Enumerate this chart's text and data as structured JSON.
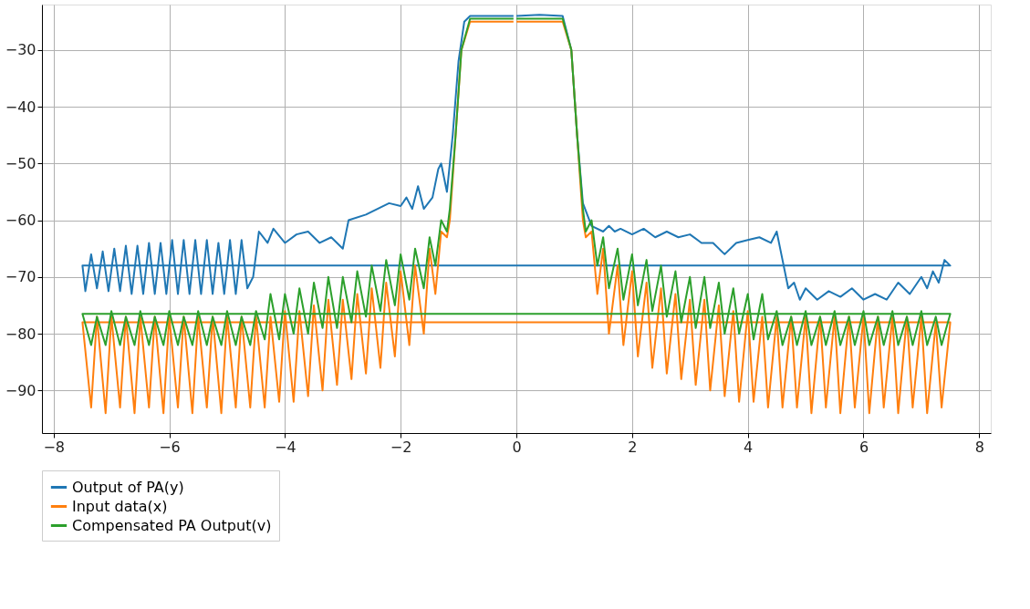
{
  "chart_data": {
    "type": "line",
    "xlim": [
      -8.2,
      8.2
    ],
    "ylim": [
      -97.5,
      -22
    ],
    "xticks": [
      {
        "value": -8,
        "label": "−8"
      },
      {
        "value": -6,
        "label": "−6"
      },
      {
        "value": -4,
        "label": "−4"
      },
      {
        "value": -2,
        "label": "−2"
      },
      0,
      2,
      4,
      6,
      8
    ],
    "yticks": [
      {
        "value": -90,
        "label": "−90"
      },
      {
        "value": -80,
        "label": "−80"
      },
      {
        "value": -70,
        "label": "−70"
      },
      {
        "value": -60,
        "label": "−60"
      },
      {
        "value": -50,
        "label": "−50"
      },
      {
        "value": -40,
        "label": "−40"
      },
      {
        "value": -30,
        "label": "−30"
      }
    ],
    "grid": true,
    "legend": "bottom",
    "line_style": "solid",
    "series": [
      {
        "name": "Output of PA(y)",
        "color": "#1f77b4",
        "x": [
          0,
          0.4,
          0.8,
          0.95,
          1.05,
          1.15,
          1.3,
          1.5,
          1.6,
          1.7,
          1.8,
          2.0,
          2.2,
          2.4,
          2.6,
          2.8,
          3.0,
          3.2,
          3.4,
          3.6,
          3.8,
          4.0,
          4.2,
          4.4,
          4.5,
          4.6,
          4.7,
          4.8,
          4.9,
          5.0,
          5.2,
          5.4,
          5.6,
          5.8,
          6.0,
          6.2,
          6.4,
          6.6,
          6.8,
          7.0,
          7.1,
          7.2,
          7.3,
          7.4,
          7.5,
          -7.5,
          -7.45,
          -7.35,
          -7.25,
          -7.15,
          -7.05,
          -6.95,
          -6.85,
          -6.75,
          -6.65,
          -6.55,
          -6.45,
          -6.35,
          -6.25,
          -6.15,
          -6.05,
          -5.95,
          -5.85,
          -5.75,
          -5.65,
          -5.55,
          -5.45,
          -5.35,
          -5.25,
          -5.15,
          -5.05,
          -4.95,
          -4.85,
          -4.75,
          -4.65,
          -4.55,
          -4.45,
          -4.3,
          -4.2,
          -4.0,
          -3.8,
          -3.6,
          -3.4,
          -3.2,
          -3.0,
          -2.9,
          -2.6,
          -2.4,
          -2.2,
          -2.0,
          -1.9,
          -1.8,
          -1.7,
          -1.6,
          -1.45,
          -1.35,
          -1.3,
          -1.2,
          -1.1,
          -1.0,
          -0.9,
          -0.8,
          -0.4,
          -0.05
        ],
        "values": [
          -24,
          -23.8,
          -24,
          -30,
          -45,
          -57,
          -61,
          -62,
          -61,
          -62,
          -61.5,
          -62.5,
          -61.5,
          -63,
          -62,
          -63,
          -62.5,
          -64,
          -64,
          -66,
          -64,
          -63.5,
          -63,
          -64,
          -62,
          -67,
          -72,
          -71,
          -74,
          -72,
          -74,
          -72.5,
          -73.5,
          -72,
          -74,
          -73,
          -74,
          -71,
          -73,
          -70,
          -72,
          -69,
          -71,
          -67,
          -68,
          -68,
          -72.5,
          -66,
          -72,
          -65.5,
          -72.5,
          -65,
          -72.5,
          -64.5,
          -73,
          -64.5,
          -73,
          -64,
          -73,
          -64,
          -73,
          -63.5,
          -73,
          -63.5,
          -73,
          -63.5,
          -73,
          -63.5,
          -73,
          -64,
          -73,
          -63.5,
          -73,
          -63.5,
          -72,
          -70,
          -62,
          -64,
          -61.5,
          -64,
          -62.5,
          -62,
          -64,
          -63,
          -65,
          -60,
          -59,
          -58,
          -57,
          -57.5,
          -56,
          -58,
          -54,
          -58,
          -56,
          -51,
          -50,
          -55,
          -45,
          -32,
          -25,
          -24,
          -24,
          -24
        ]
      },
      {
        "name": "Input data(x)",
        "color": "#ff7f0e",
        "x": [
          0,
          0.8,
          0.95,
          1.05,
          1.15,
          1.2,
          1.3,
          1.4,
          1.5,
          1.6,
          1.75,
          1.85,
          2.0,
          2.1,
          2.25,
          2.35,
          2.5,
          2.6,
          2.75,
          2.85,
          3.0,
          3.1,
          3.25,
          3.35,
          3.5,
          3.6,
          3.75,
          3.85,
          4.0,
          4.1,
          4.25,
          4.35,
          4.5,
          4.6,
          4.75,
          4.85,
          5.0,
          5.1,
          5.25,
          5.35,
          5.5,
          5.6,
          5.75,
          5.85,
          6.0,
          6.1,
          6.25,
          6.35,
          6.5,
          6.6,
          6.75,
          6.85,
          7.0,
          7.1,
          7.25,
          7.35,
          7.5,
          -7.5,
          -7.35,
          -7.25,
          -7.1,
          -7.0,
          -6.85,
          -6.75,
          -6.6,
          -6.5,
          -6.35,
          -6.25,
          -6.1,
          -6.0,
          -5.85,
          -5.75,
          -5.6,
          -5.5,
          -5.35,
          -5.25,
          -5.1,
          -5.0,
          -4.85,
          -4.75,
          -4.6,
          -4.5,
          -4.35,
          -4.25,
          -4.1,
          -4.0,
          -3.85,
          -3.75,
          -3.6,
          -3.5,
          -3.35,
          -3.25,
          -3.1,
          -3.0,
          -2.85,
          -2.75,
          -2.6,
          -2.5,
          -2.35,
          -2.25,
          -2.1,
          -2.0,
          -1.85,
          -1.75,
          -1.6,
          -1.5,
          -1.4,
          -1.3,
          -1.2,
          -1.15,
          -1.05,
          -0.95,
          -0.8,
          -0.05
        ],
        "values": [
          -25,
          -25,
          -30,
          -45,
          -60,
          -63,
          -62,
          -73,
          -65,
          -80,
          -68,
          -82,
          -69,
          -84,
          -71,
          -86,
          -72,
          -87,
          -73,
          -88,
          -74,
          -89,
          -74,
          -90,
          -75,
          -91,
          -76,
          -92,
          -76,
          -92,
          -77,
          -93,
          -77,
          -93,
          -77,
          -93,
          -77,
          -94,
          -77,
          -93,
          -77,
          -94,
          -77,
          -93,
          -77,
          -94,
          -77,
          -93,
          -77,
          -94,
          -77,
          -93,
          -77,
          -94,
          -78,
          -93,
          -78,
          -78,
          -93,
          -77,
          -94,
          -77,
          -93,
          -77,
          -94,
          -77,
          -93,
          -77,
          -94,
          -77,
          -93,
          -77,
          -94,
          -77,
          -93,
          -77,
          -94,
          -77,
          -93,
          -77,
          -93,
          -77,
          -93,
          -77,
          -92,
          -76,
          -92,
          -76,
          -91,
          -75,
          -90,
          -74,
          -89,
          -74,
          -88,
          -73,
          -87,
          -72,
          -86,
          -71,
          -84,
          -69,
          -82,
          -68,
          -80,
          -65,
          -73,
          -62,
          -63,
          -60,
          -45,
          -30,
          -25,
          -25
        ]
      },
      {
        "name": "Compensated PA Output(v)",
        "color": "#2ca02c",
        "x": [
          0,
          0.8,
          0.95,
          1.05,
          1.15,
          1.2,
          1.3,
          1.4,
          1.5,
          1.6,
          1.75,
          1.85,
          2.0,
          2.1,
          2.25,
          2.35,
          2.5,
          2.6,
          2.75,
          2.85,
          3.0,
          3.1,
          3.25,
          3.35,
          3.5,
          3.6,
          3.75,
          3.85,
          4.0,
          4.1,
          4.25,
          4.35,
          4.5,
          4.6,
          4.75,
          4.85,
          5.0,
          5.1,
          5.25,
          5.35,
          5.5,
          5.6,
          5.75,
          5.85,
          6.0,
          6.1,
          6.25,
          6.35,
          6.5,
          6.6,
          6.75,
          6.85,
          7.0,
          7.1,
          7.25,
          7.35,
          7.5,
          -7.5,
          -7.35,
          -7.25,
          -7.1,
          -7.0,
          -6.85,
          -6.75,
          -6.6,
          -6.5,
          -6.35,
          -6.25,
          -6.1,
          -6.0,
          -5.85,
          -5.75,
          -5.6,
          -5.5,
          -5.35,
          -5.25,
          -5.1,
          -5.0,
          -4.85,
          -4.75,
          -4.6,
          -4.5,
          -4.35,
          -4.25,
          -4.1,
          -4.0,
          -3.85,
          -3.75,
          -3.6,
          -3.5,
          -3.35,
          -3.25,
          -3.1,
          -3.0,
          -2.85,
          -2.75,
          -2.6,
          -2.5,
          -2.35,
          -2.25,
          -2.1,
          -2.0,
          -1.85,
          -1.75,
          -1.6,
          -1.5,
          -1.4,
          -1.3,
          -1.2,
          -1.15,
          -1.05,
          -0.95,
          -0.8,
          -0.05
        ],
        "values": [
          -24.5,
          -24.5,
          -30,
          -45,
          -58,
          -62,
          -60,
          -68,
          -63,
          -72,
          -65,
          -74,
          -66,
          -75,
          -67,
          -76,
          -68,
          -77,
          -69,
          -78,
          -70,
          -79,
          -70,
          -79,
          -71,
          -80,
          -72,
          -80,
          -73,
          -81,
          -73,
          -81,
          -76,
          -82,
          -77,
          -82,
          -76,
          -82,
          -77,
          -82,
          -76,
          -82,
          -77,
          -82,
          -76,
          -82,
          -77,
          -82,
          -76,
          -82,
          -77,
          -82,
          -76,
          -82,
          -77,
          -82,
          -76.5,
          -76.5,
          -82,
          -77,
          -82,
          -76,
          -82,
          -77,
          -82,
          -76,
          -82,
          -77,
          -82,
          -76,
          -82,
          -77,
          -82,
          -76,
          -82,
          -77,
          -82,
          -76,
          -82,
          -77,
          -82,
          -76,
          -81,
          -73,
          -81,
          -73,
          -80,
          -72,
          -80,
          -71,
          -79,
          -70,
          -79,
          -70,
          -78,
          -69,
          -77,
          -68,
          -76,
          -67,
          -75,
          -66,
          -74,
          -65,
          -72,
          -63,
          -68,
          -60,
          -62,
          -58,
          -45,
          -30,
          -24.5,
          -24.5
        ]
      }
    ]
  }
}
